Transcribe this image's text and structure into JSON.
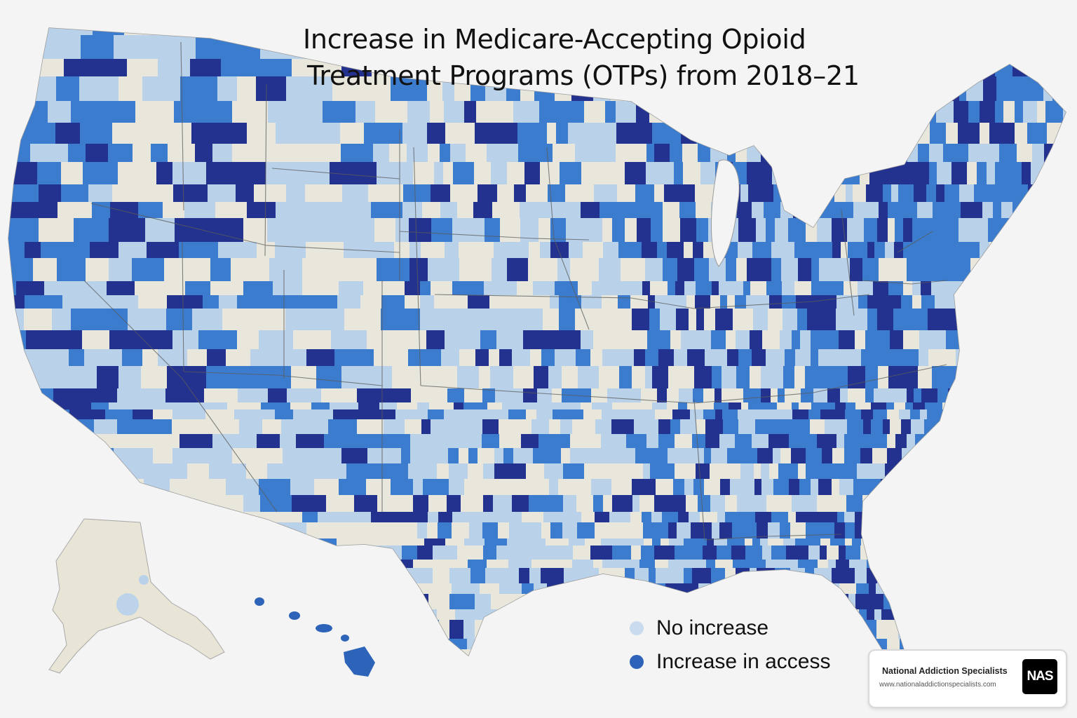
{
  "title": {
    "line1": "Increase in Medicare-Accepting Opioid",
    "line2": "Treatment Programs (OTPs) from 2018–21"
  },
  "legend": {
    "items": [
      {
        "label": "No increase",
        "color": "#c9dcee"
      },
      {
        "label": "Increase in access",
        "color": "#2d63b8"
      }
    ]
  },
  "brand": {
    "name": "National Addiction Specialists",
    "url": "www.nationaladdictionspecialists.com",
    "logo_text": "NAS"
  },
  "map_colors": {
    "no_increase": "#e9e7db",
    "light_blue": "#b9d2ea",
    "mid_blue": "#3b7ccf",
    "dark_blue": "#23328e",
    "border": "#5b5b5b",
    "alaska": "#e8e5d7"
  }
}
